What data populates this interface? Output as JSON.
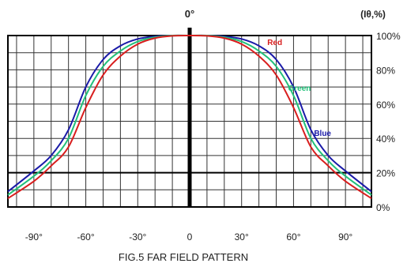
{
  "chart_data": {
    "type": "line",
    "title": "FIG.5 FAR FIELD PATTERN",
    "top_label": "0°",
    "y_unit_label": "(Iθ,%)",
    "xlim": [
      -105,
      105
    ],
    "ylim": [
      0,
      100
    ],
    "x_ticks": [
      -90,
      -60,
      -30,
      0,
      30,
      60,
      90
    ],
    "x_tick_labels": [
      "-90°",
      "-60°",
      "-30°",
      "0",
      "30°",
      "60°",
      "90°"
    ],
    "y_ticks": [
      0,
      20,
      40,
      60,
      80,
      100
    ],
    "y_tick_labels": [
      "0%",
      "20%",
      "40%",
      "60%",
      "80%",
      "100%"
    ],
    "grid": true,
    "x": [
      -105,
      -90,
      -80,
      -70,
      -60,
      -50,
      -40,
      -30,
      -20,
      -10,
      0,
      10,
      20,
      30,
      40,
      50,
      60,
      70,
      80,
      90,
      105
    ],
    "series": [
      {
        "name": "Blue",
        "color": "#1a1aa8",
        "label_at": 70,
        "values": [
          9,
          21,
          30,
          45,
          70,
          86,
          94,
          98,
          99.5,
          100,
          100,
          100,
          99.5,
          98,
          94,
          86,
          70,
          45,
          30,
          21,
          9
        ]
      },
      {
        "name": "Green",
        "color": "#22c07a",
        "label_at": 55,
        "values": [
          7,
          18,
          27,
          40,
          65,
          82,
          91,
          96.5,
          99,
          100,
          100,
          100,
          99,
          96.5,
          91,
          82,
          65,
          40,
          27,
          18,
          7
        ]
      },
      {
        "name": "Red",
        "color": "#d81e1e",
        "label_at": 43,
        "values": [
          5,
          15,
          24,
          35,
          58,
          77,
          88,
          95,
          98.5,
          99.8,
          100,
          99.8,
          98.5,
          95,
          88,
          77,
          58,
          35,
          24,
          15,
          5
        ]
      }
    ]
  }
}
